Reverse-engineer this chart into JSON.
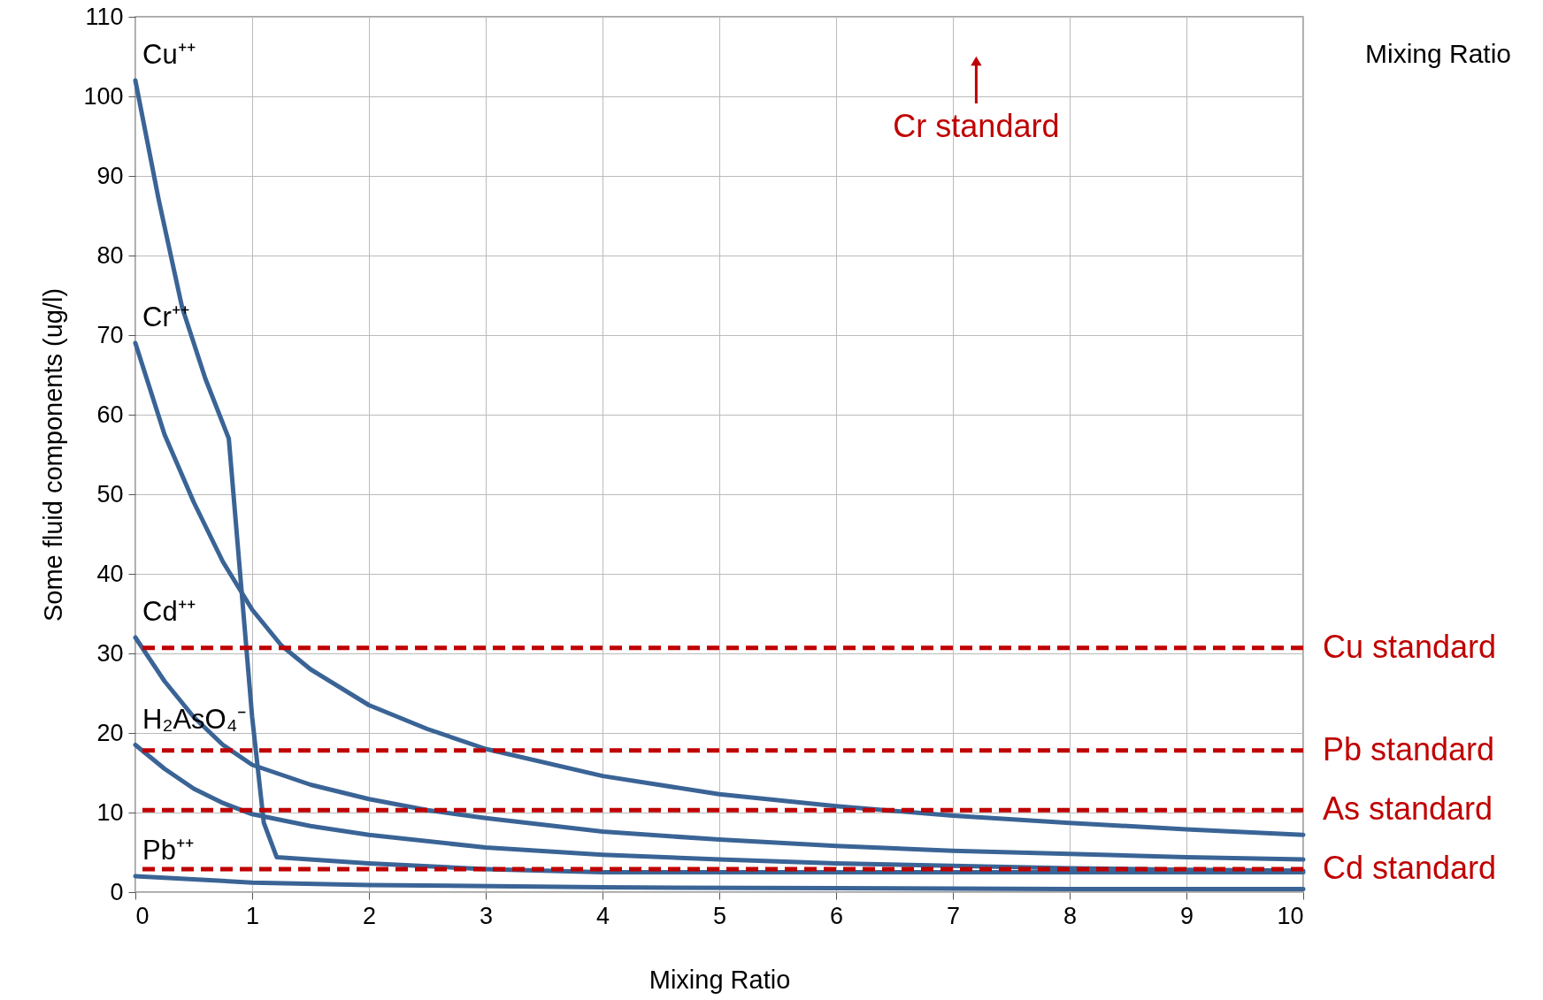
{
  "chart_data": {
    "type": "line",
    "xlabel": "Mixing Ratio",
    "ylabel": "Some fluid components (ug/l)",
    "xlim": [
      0,
      10
    ],
    "xticks": [
      0,
      1,
      2,
      3,
      4,
      5,
      6,
      7,
      8,
      9,
      10
    ],
    "ylim": [
      0,
      110
    ],
    "yticks": [
      0,
      10,
      20,
      30,
      40,
      50,
      60,
      70,
      80,
      90,
      100,
      110
    ],
    "grid": true,
    "line_style": "solid",
    "marker": "none",
    "series": [
      {
        "name": "Cu⁺⁺",
        "color": "#3a6496",
        "x": [
          0,
          0.2,
          0.4,
          0.6,
          0.8,
          1.0,
          1.1,
          1.21,
          2,
          3,
          4,
          6,
          8,
          10
        ],
        "values": [
          102,
          87,
          73.5,
          64.5,
          57,
          22,
          8.7,
          4.4,
          3.6,
          2.9,
          2.5,
          2.5,
          2.5,
          2.5
        ]
      },
      {
        "name": "Cr⁺⁺",
        "color": "#3a6496",
        "x": [
          0,
          0.25,
          0.5,
          0.75,
          1,
          1.25,
          1.5,
          2,
          2.5,
          3,
          4,
          5,
          6,
          7,
          8,
          9,
          10
        ],
        "values": [
          69,
          57.5,
          49,
          41.5,
          35.5,
          31,
          28,
          23.5,
          20.5,
          18,
          14.6,
          12.3,
          10.8,
          9.6,
          8.7,
          7.9,
          7.2
        ]
      },
      {
        "name": "Cd⁺⁺",
        "color": "#3a6496",
        "x": [
          0,
          0.25,
          0.5,
          0.75,
          1,
          1.5,
          2,
          2.5,
          3,
          4,
          5,
          6,
          7,
          8,
          9,
          10
        ],
        "values": [
          32,
          26.5,
          22,
          18.5,
          16,
          13.5,
          11.7,
          10.3,
          9.3,
          7.6,
          6.6,
          5.8,
          5.2,
          4.8,
          4.4,
          4.1
        ]
      },
      {
        "name": "H₂AsO₄⁻",
        "color": "#3a6496",
        "x": [
          0,
          0.25,
          0.5,
          0.75,
          1,
          1.5,
          2,
          3,
          4,
          5,
          6,
          7,
          8,
          9,
          10
        ],
        "values": [
          18.5,
          15.5,
          13,
          11.2,
          9.8,
          8.3,
          7.2,
          5.6,
          4.7,
          4.1,
          3.6,
          3.3,
          3.0,
          2.8,
          2.7
        ]
      },
      {
        "name": "Pb⁺⁺",
        "color": "#3a6496",
        "x": [
          0,
          1,
          2,
          4,
          6,
          8,
          10
        ],
        "values": [
          2,
          1.2,
          0.9,
          0.6,
          0.5,
          0.4,
          0.4
        ]
      }
    ],
    "ref_lines": [
      {
        "axis": "y",
        "value": 30.7,
        "label": "Cu standard",
        "color": "#c00000",
        "line_style": "dashed"
      },
      {
        "axis": "y",
        "value": 17.8,
        "label": "Pb standard",
        "color": "#c00000",
        "line_style": "dashed"
      },
      {
        "axis": "y",
        "value": 10.3,
        "label": "As standard",
        "color": "#c00000",
        "line_style": "dashed"
      },
      {
        "axis": "y",
        "value": 2.9,
        "label": "Cd standard",
        "color": "#c00000",
        "line_style": "dashed"
      }
    ],
    "annotations": [
      "Mixing Ratio",
      "Cr standard"
    ]
  }
}
